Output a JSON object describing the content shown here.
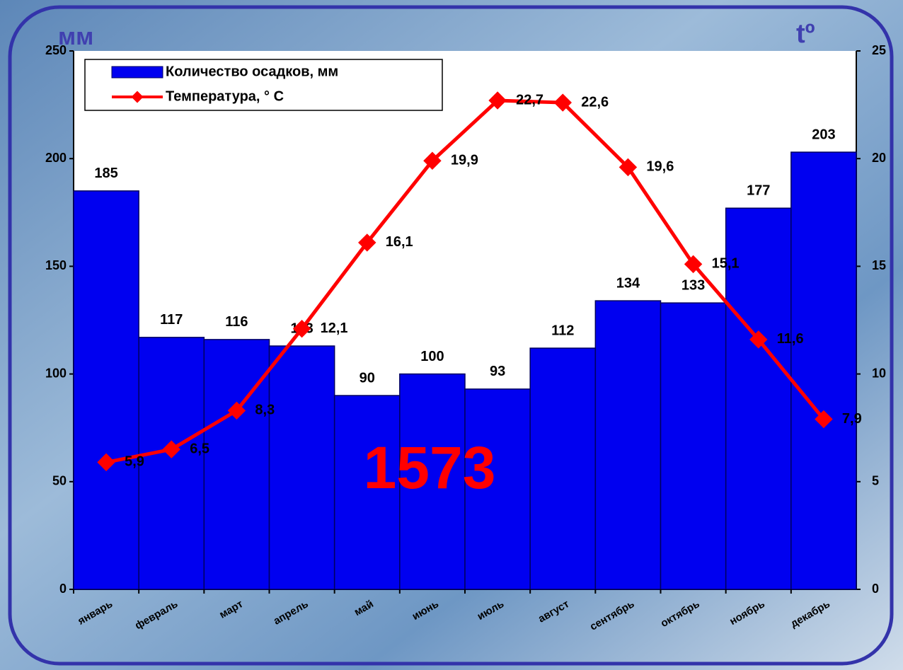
{
  "chart_data": {
    "type": "bar-line",
    "y_label": "мм",
    "y2_label": "tº",
    "annotation": "1573",
    "categories": [
      "январь",
      "февраль",
      "март",
      "апрель",
      "май",
      "июнь",
      "июль",
      "август",
      "сентябрь",
      "октябрь",
      "ноябрь",
      "декабрь"
    ],
    "series": [
      {
        "name": "Количество осадков, мм",
        "type": "bar",
        "color": "#0000f0",
        "values": [
          185,
          117,
          116,
          113,
          90,
          100,
          93,
          112,
          134,
          133,
          177,
          203
        ]
      },
      {
        "name": "Температура, ° С",
        "type": "line",
        "axis": "y2",
        "color": "#ff0000",
        "values": [
          5.9,
          6.5,
          8.3,
          12.1,
          16.1,
          19.9,
          22.7,
          22.6,
          19.6,
          15.1,
          11.6,
          7.9
        ],
        "value_labels": [
          "5,9",
          "6,5",
          "8,3",
          "12,1",
          "16,1",
          "19,9",
          "22,7",
          "22,6",
          "19,6",
          "15,1",
          "11,6",
          "7,9"
        ]
      }
    ],
    "ylim": [
      0,
      250
    ],
    "yticks": [
      0,
      50,
      100,
      150,
      200,
      250
    ],
    "y2lim": [
      0,
      25
    ],
    "y2ticks": [
      0,
      5,
      10,
      15,
      20,
      25
    ],
    "legend": "upper left"
  }
}
